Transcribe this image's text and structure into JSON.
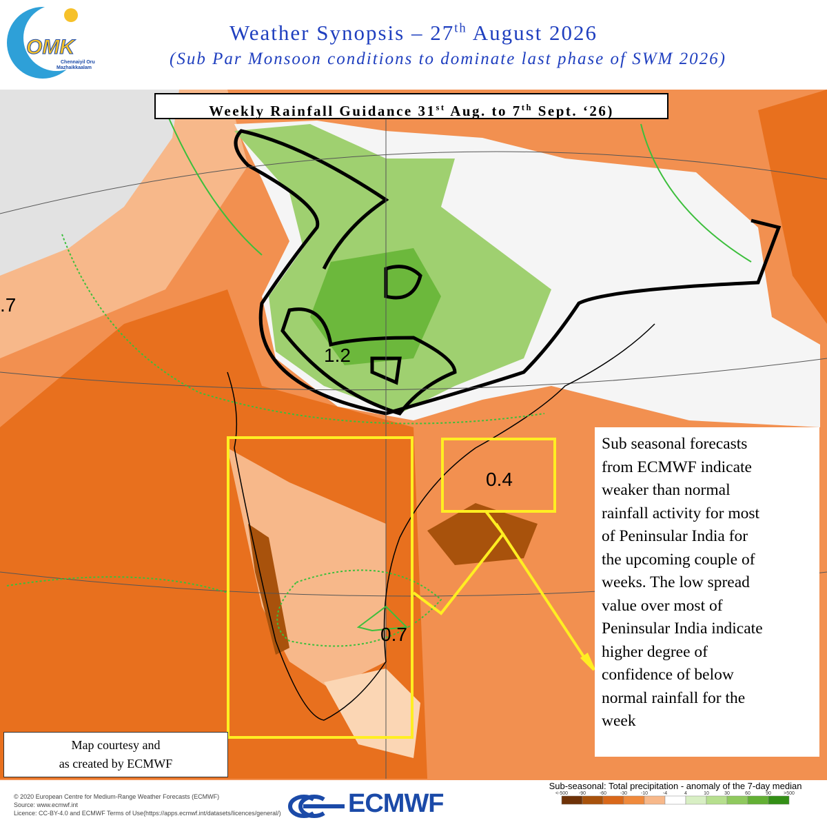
{
  "header": {
    "title": {
      "pre": "Weather Synopsis – 27",
      "sup": "th",
      "post": " August 2026"
    },
    "subtitle": "(Sub Par Monsoon conditions to dominate last phase of SWM 2026)"
  },
  "logo": {
    "mark": "OMK",
    "line1": "Chennaiyil Oru",
    "line2": "Mazhaikkaalam"
  },
  "guidance": {
    "pre": "Weekly Rainfall Guidance 31",
    "sup1": "st",
    "mid": " Aug. to 7",
    "sup2": "th",
    "post": " Sept. ‘26)"
  },
  "map_labels": {
    "north": "1.2",
    "east": "0.4",
    "south": "0.7",
    "west": ".7"
  },
  "annotation": {
    "lines": [
      "Sub seasonal forecasts",
      "from ECMWF indicate",
      "weaker than normal",
      "rainfall activity for most",
      "of Peninsular India for",
      "the upcoming couple of",
      "weeks. The low spread",
      "value over most of",
      "Peninsular India indicate",
      "higher degree of",
      "confidence of below",
      "normal rainfall for the",
      "week"
    ]
  },
  "credit": {
    "lines": [
      "Map courtesy and",
      "as created by ECMWF"
    ]
  },
  "footer": {
    "copyright": "© 2020 European Centre for Medium-Range Weather Forecasts (ECMWF)",
    "source": "Source: www.ecmwf.int",
    "licence": "Licence: CC-BY-4.0 and ECMWF Terms of Use(https://apps.ecmwf.int/datasets/licences/general/)",
    "brand": "ECMWF"
  },
  "legend": {
    "title": "Sub-seasonal: Total precipitation - anomaly of the 7-day median",
    "labels": [
      "<-500",
      "-90",
      "-60",
      "-30",
      "-10",
      "-4",
      "4",
      "10",
      "30",
      "60",
      "90",
      ">500"
    ],
    "colors": [
      "#6e3208",
      "#a8520c",
      "#d9681a",
      "#f08a3c",
      "#f7b88a",
      "#ffffff",
      "#d8efc4",
      "#b6df8e",
      "#8fc95e",
      "#63b034",
      "#338f16"
    ]
  }
}
